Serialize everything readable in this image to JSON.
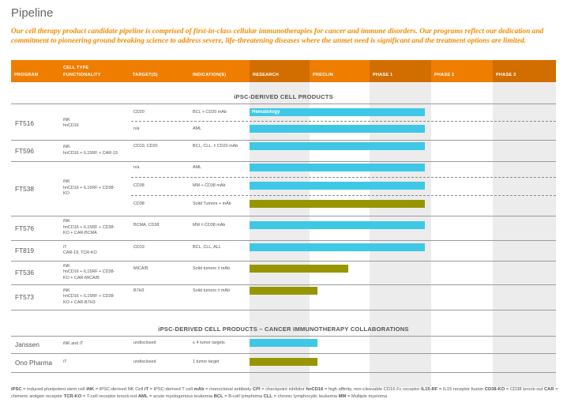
{
  "page": {
    "title": "Pipeline",
    "intro": "Our cell therapy product candidate pipeline is comprised of first-in-class cellular immunotherapies for cancer and immune disorders. Our programs reflect our dedication and commitment to pioneering ground breaking science to address severe, life-threatening diseases where the unmet need is significant and the treatment options are limited."
  },
  "header": {
    "program": "PROGRAM",
    "cell_type_line1": "CELL TYPE",
    "cell_type_line2": "FUNCTIONALITY",
    "targets": "TARGET(S)",
    "indications": "INDICATION(S)",
    "research": "RESEARCH",
    "preclin": "PRECLIN",
    "phase1": "PHASE 1",
    "phase2": "PHASE 2",
    "phase3": "PHASE 3"
  },
  "colors": {
    "orange": "#ef7d00",
    "blue_bar": "#3ec8e6",
    "olive_bar": "#979600",
    "band": "#ececec"
  },
  "chart_data": {
    "type": "table",
    "stages": [
      "RESEARCH",
      "PRECLIN",
      "PHASE 1",
      "PHASE 2",
      "PHASE 3"
    ],
    "sections": [
      {
        "title": "iPSC-DERIVED CELL PRODUCTS",
        "programs": [
          {
            "name": "FT516",
            "functionality": [
              "iNK",
              "hnCD16"
            ],
            "rows": [
              {
                "target": "CD20",
                "indication": "BCL + CD20 mAb",
                "progress": 2.85,
                "color": "blue",
                "label": "Hematology"
              },
              {
                "target": "n/a",
                "indication": "AML",
                "progress": 2.85,
                "color": "blue",
                "label": ""
              }
            ]
          },
          {
            "name": "FT596",
            "functionality": [
              "iNK",
              "hnCD16 + IL15RF + CAR-19"
            ],
            "rows": [
              {
                "target": "CD19, CD20",
                "indication": "BCL, CLL, ± CD20 mAb",
                "progress": 2.85,
                "color": "blue",
                "label": ""
              }
            ]
          },
          {
            "name": "FT538",
            "functionality": [
              "iNK",
              "hnCD16 + IL15RF + CD38-",
              "KO"
            ],
            "rows": [
              {
                "target": "n/a",
                "indication": "AML",
                "progress": 2.85,
                "color": "blue",
                "label": ""
              },
              {
                "target": "CD38",
                "indication": "MM + CD38 mAb",
                "progress": 2.85,
                "color": "blue",
                "label": ""
              },
              {
                "target": "CD38",
                "indication": "Solid Tumors + mAb",
                "progress": 2.85,
                "color": "olive",
                "label": ""
              }
            ]
          },
          {
            "name": "FT576",
            "functionality": [
              "iNK",
              "hnCD16 + IL15RF + CD38-",
              "KO + CAR-BCMA"
            ],
            "rows": [
              {
                "target": "BCMA, CD38",
                "indication": "MM ± CD38 mAb",
                "progress": 2.85,
                "color": "blue",
                "label": ""
              }
            ]
          },
          {
            "name": "FT819",
            "functionality": [
              "iT",
              "CAR-19, TCR-KO"
            ],
            "rows": [
              {
                "target": "CD19",
                "indication": "BCL, CLL, ALL",
                "progress": 2.85,
                "color": "blue",
                "label": ""
              }
            ]
          },
          {
            "name": "FT536",
            "functionality": [
              "iNK",
              "hnCD16 + IL15RF + CD38-",
              "KO + CAR-MICA/B"
            ],
            "rows": [
              {
                "target": "MICA/B",
                "indication": "Solid tumors ± mAb",
                "progress": 1.6,
                "color": "olive",
                "label": ""
              }
            ]
          },
          {
            "name": "FT573",
            "functionality": [
              "iNK",
              "hnCD16 + IL15RF + CD38-",
              "KO + CAR-B7H3"
            ],
            "rows": [
              {
                "target": "B7H3",
                "indication": "Solid tumors ± mAb",
                "progress": 1.1,
                "color": "olive",
                "label": ""
              }
            ]
          }
        ]
      },
      {
        "title": "iPSC-DERIVED CELL PRODUCTS – CANCER IMMUNOTHERAPY COLLABORATIONS",
        "programs": [
          {
            "name": "Janssen",
            "functionality": [
              "iNK and iT"
            ],
            "rows": [
              {
                "target": "undisclosed",
                "indication": "≤ 4 tumor targets",
                "progress": 1.1,
                "color": "blue",
                "label": ""
              }
            ]
          },
          {
            "name": "Ono Pharma",
            "functionality": [
              "iT"
            ],
            "rows": [
              {
                "target": "undisclosed",
                "indication": "1 tumor target",
                "progress": 1.1,
                "color": "olive",
                "label": ""
              }
            ]
          }
        ]
      }
    ]
  },
  "footnote": [
    [
      "iPSC",
      " = induced pluripotent stem cell "
    ],
    [
      "iNK",
      " = iPSC-derived NK Cell "
    ],
    [
      "iT",
      " = iPSC-derived T cell "
    ],
    [
      "mAb",
      " = monoclonal antibody "
    ],
    [
      "CPI",
      " = checkpoint inhibitor "
    ],
    [
      "hnCD16",
      " = high affinity, non-cleavable CD16 Fc receptor "
    ],
    [
      "IL15-RF",
      " = IL15 receptor fusion "
    ],
    [
      "CD38-KO",
      " = CD38 knock-out "
    ],
    [
      "CAR",
      " = chimeric antigen receptor "
    ],
    [
      "TCR-KO",
      " = T-cell receptor knock-out "
    ],
    [
      "AML",
      " = acute myelogenous leukemia "
    ],
    [
      "BCL",
      " = B-cell lymphoma "
    ],
    [
      "CLL",
      " = chronic lymphocytic leukemia "
    ],
    [
      "MM",
      " = Multiple myeloma"
    ]
  ]
}
